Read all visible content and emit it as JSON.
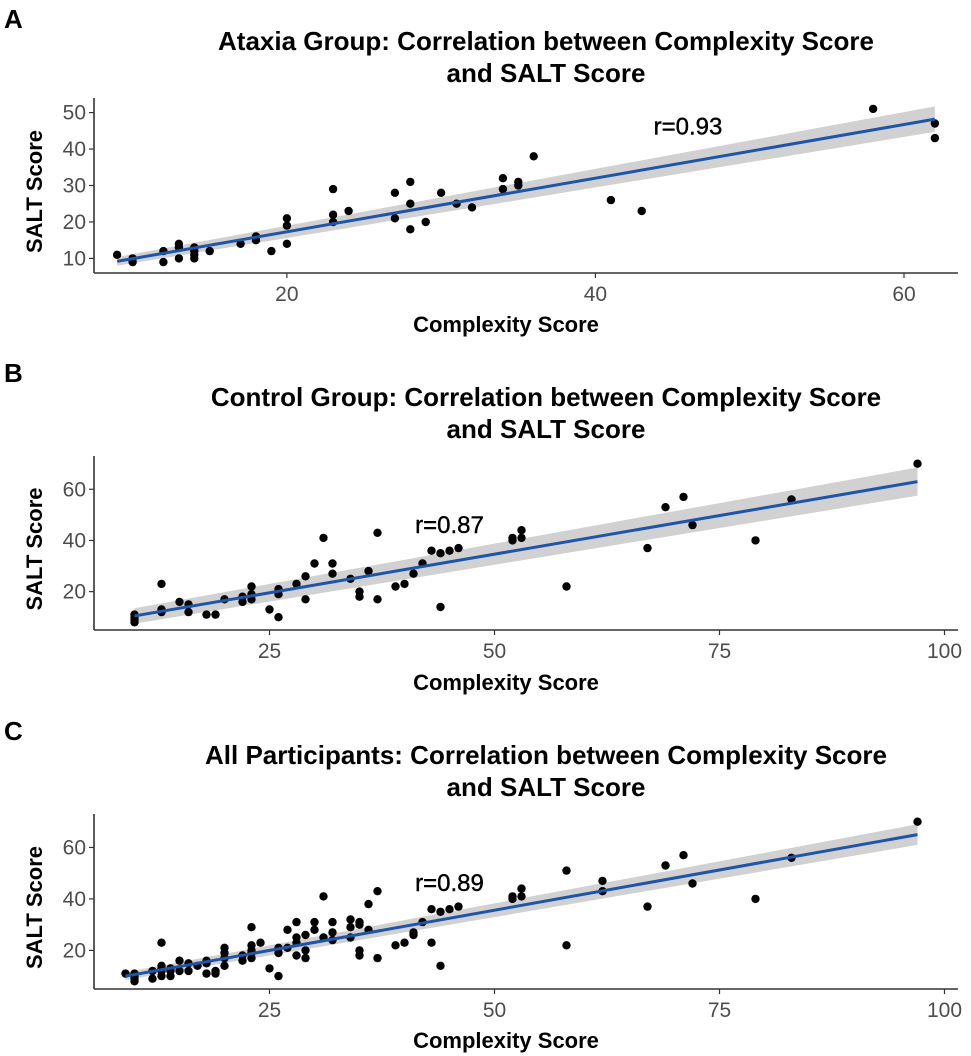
{
  "chart_data": [
    {
      "type": "scatter",
      "panel": "A",
      "title": "Ataxia Group: Correlation between Complexity Score\nand SALT Score",
      "title_lines": [
        "Ataxia Group: Correlation between Complexity Score",
        "and SALT Score"
      ],
      "xlabel": "Complexity Score",
      "ylabel": "SALT Score",
      "xlim": [
        7.5,
        63.5
      ],
      "ylim": [
        6,
        54
      ],
      "xticks": [
        20,
        40,
        60
      ],
      "yticks": [
        10,
        20,
        30,
        40,
        50
      ],
      "annotation": "r=0.93",
      "annotation_pos": [
        46,
        44
      ],
      "fit": {
        "x": [
          9,
          62
        ],
        "y": [
          9.2,
          48.2
        ],
        "ci_half_width_start": 1.2,
        "ci_half_width_end": 3.5
      },
      "grid": false,
      "points": [
        [
          9,
          11
        ],
        [
          10,
          10
        ],
        [
          10,
          9
        ],
        [
          12,
          12
        ],
        [
          12,
          9
        ],
        [
          13,
          14
        ],
        [
          13,
          13
        ],
        [
          13,
          10
        ],
        [
          14,
          13
        ],
        [
          14,
          12
        ],
        [
          14,
          11
        ],
        [
          14,
          10
        ],
        [
          15,
          12
        ],
        [
          17,
          14
        ],
        [
          18,
          16
        ],
        [
          18,
          15
        ],
        [
          19,
          12
        ],
        [
          20,
          21
        ],
        [
          20,
          19
        ],
        [
          20,
          14
        ],
        [
          23,
          29
        ],
        [
          23,
          22
        ],
        [
          23,
          20
        ],
        [
          24,
          23
        ],
        [
          27,
          28
        ],
        [
          27,
          21
        ],
        [
          28,
          31
        ],
        [
          28,
          25
        ],
        [
          28,
          18
        ],
        [
          29,
          20
        ],
        [
          30,
          28
        ],
        [
          31,
          25
        ],
        [
          32,
          24
        ],
        [
          34,
          32
        ],
        [
          34,
          29
        ],
        [
          35,
          31
        ],
        [
          35,
          30
        ],
        [
          36,
          38
        ],
        [
          41,
          26
        ],
        [
          43,
          23
        ],
        [
          58,
          51
        ],
        [
          62,
          47
        ],
        [
          62,
          43
        ]
      ]
    },
    {
      "type": "scatter",
      "panel": "B",
      "title": "Control Group: Correlation between Complexity Score\nand SALT Score",
      "title_lines": [
        "Control Group: Correlation between Complexity Score",
        "and SALT Score"
      ],
      "xlabel": "Complexity Score",
      "ylabel": "SALT Score",
      "xlim": [
        5.5,
        101.5
      ],
      "ylim": [
        5,
        73
      ],
      "xticks": [
        25,
        50,
        75,
        100
      ],
      "yticks": [
        20,
        40,
        60
      ],
      "annotation": "r=0.87",
      "annotation_pos": [
        45,
        43
      ],
      "fit": {
        "x": [
          10,
          97
        ],
        "y": [
          10.5,
          63
        ],
        "ci_half_width_start": 3,
        "ci_half_width_end": 5.5
      },
      "grid": false,
      "points": [
        [
          10,
          11
        ],
        [
          10,
          10
        ],
        [
          10,
          9
        ],
        [
          10,
          8
        ],
        [
          13,
          23
        ],
        [
          13,
          13
        ],
        [
          13,
          12
        ],
        [
          15,
          16
        ],
        [
          16,
          15
        ],
        [
          16,
          12
        ],
        [
          18,
          11
        ],
        [
          19,
          11
        ],
        [
          20,
          17
        ],
        [
          22,
          18
        ],
        [
          22,
          16
        ],
        [
          23,
          22
        ],
        [
          23,
          19
        ],
        [
          23,
          17
        ],
        [
          25,
          13
        ],
        [
          26,
          21
        ],
        [
          26,
          19
        ],
        [
          26,
          10
        ],
        [
          28,
          23
        ],
        [
          29,
          26
        ],
        [
          29,
          17
        ],
        [
          30,
          31
        ],
        [
          31,
          41
        ],
        [
          32,
          31
        ],
        [
          32,
          27
        ],
        [
          34,
          25
        ],
        [
          35,
          20
        ],
        [
          35,
          18
        ],
        [
          36,
          28
        ],
        [
          37,
          43
        ],
        [
          37,
          17
        ],
        [
          39,
          22
        ],
        [
          40,
          23
        ],
        [
          41,
          27
        ],
        [
          42,
          31
        ],
        [
          43,
          36
        ],
        [
          44,
          35
        ],
        [
          44,
          14
        ],
        [
          45,
          36
        ],
        [
          46,
          37
        ],
        [
          52,
          41
        ],
        [
          52,
          40
        ],
        [
          53,
          44
        ],
        [
          53,
          41
        ],
        [
          58,
          22
        ],
        [
          67,
          37
        ],
        [
          69,
          53
        ],
        [
          71,
          57
        ],
        [
          72,
          46
        ],
        [
          79,
          40
        ],
        [
          83,
          56
        ],
        [
          97,
          70
        ]
      ]
    },
    {
      "type": "scatter",
      "panel": "C",
      "title": "All Participants: Correlation between Complexity Score\nand SALT Score",
      "title_lines": [
        "All Participants: Correlation between Complexity Score",
        "and SALT Score"
      ],
      "xlabel": "Complexity Score",
      "ylabel": "SALT Score",
      "xlim": [
        5.5,
        101.5
      ],
      "ylim": [
        5,
        73
      ],
      "xticks": [
        25,
        50,
        75,
        100
      ],
      "yticks": [
        20,
        40,
        60
      ],
      "annotation": "r=0.89",
      "annotation_pos": [
        45,
        43
      ],
      "fit": {
        "x": [
          9,
          97
        ],
        "y": [
          10,
          65
        ],
        "ci_half_width_start": 1.5,
        "ci_half_width_end": 4
      },
      "grid": false,
      "points": [
        [
          9,
          11
        ],
        [
          10,
          11
        ],
        [
          10,
          10
        ],
        [
          10,
          9
        ],
        [
          10,
          8
        ],
        [
          12,
          12
        ],
        [
          12,
          9
        ],
        [
          13,
          23
        ],
        [
          13,
          14
        ],
        [
          13,
          13
        ],
        [
          13,
          12
        ],
        [
          13,
          10
        ],
        [
          14,
          13
        ],
        [
          14,
          12
        ],
        [
          14,
          10
        ],
        [
          15,
          16
        ],
        [
          15,
          12
        ],
        [
          16,
          15
        ],
        [
          16,
          12
        ],
        [
          17,
          14
        ],
        [
          18,
          16
        ],
        [
          18,
          15
        ],
        [
          18,
          11
        ],
        [
          19,
          12
        ],
        [
          19,
          11
        ],
        [
          20,
          21
        ],
        [
          20,
          19
        ],
        [
          20,
          17
        ],
        [
          20,
          14
        ],
        [
          22,
          18
        ],
        [
          22,
          16
        ],
        [
          23,
          29
        ],
        [
          23,
          22
        ],
        [
          23,
          20
        ],
        [
          23,
          19
        ],
        [
          23,
          17
        ],
        [
          24,
          23
        ],
        [
          25,
          13
        ],
        [
          26,
          21
        ],
        [
          26,
          19
        ],
        [
          26,
          10
        ],
        [
          27,
          28
        ],
        [
          27,
          21
        ],
        [
          28,
          31
        ],
        [
          28,
          25
        ],
        [
          28,
          23
        ],
        [
          28,
          18
        ],
        [
          29,
          26
        ],
        [
          29,
          20
        ],
        [
          29,
          17
        ],
        [
          30,
          31
        ],
        [
          30,
          28
        ],
        [
          31,
          41
        ],
        [
          31,
          25
        ],
        [
          32,
          31
        ],
        [
          32,
          27
        ],
        [
          32,
          24
        ],
        [
          34,
          32
        ],
        [
          34,
          29
        ],
        [
          34,
          25
        ],
        [
          35,
          31
        ],
        [
          35,
          30
        ],
        [
          35,
          20
        ],
        [
          35,
          18
        ],
        [
          36,
          38
        ],
        [
          36,
          28
        ],
        [
          37,
          43
        ],
        [
          37,
          17
        ],
        [
          39,
          22
        ],
        [
          40,
          23
        ],
        [
          41,
          27
        ],
        [
          41,
          26
        ],
        [
          42,
          31
        ],
        [
          43,
          36
        ],
        [
          43,
          23
        ],
        [
          44,
          35
        ],
        [
          44,
          14
        ],
        [
          45,
          36
        ],
        [
          46,
          37
        ],
        [
          52,
          41
        ],
        [
          52,
          40
        ],
        [
          53,
          44
        ],
        [
          53,
          41
        ],
        [
          58,
          51
        ],
        [
          58,
          22
        ],
        [
          62,
          47
        ],
        [
          62,
          43
        ],
        [
          67,
          37
        ],
        [
          69,
          53
        ],
        [
          71,
          57
        ],
        [
          72,
          46
        ],
        [
          79,
          40
        ],
        [
          83,
          56
        ],
        [
          97,
          70
        ]
      ]
    }
  ],
  "panels": [
    {
      "letter": "A"
    },
    {
      "letter": "B"
    },
    {
      "letter": "C"
    }
  ],
  "colors": {
    "fit_line": "#1f55a8",
    "ci_band": "#bdbdbd",
    "points": "#000000",
    "tick_label": "#4d4d4d"
  }
}
